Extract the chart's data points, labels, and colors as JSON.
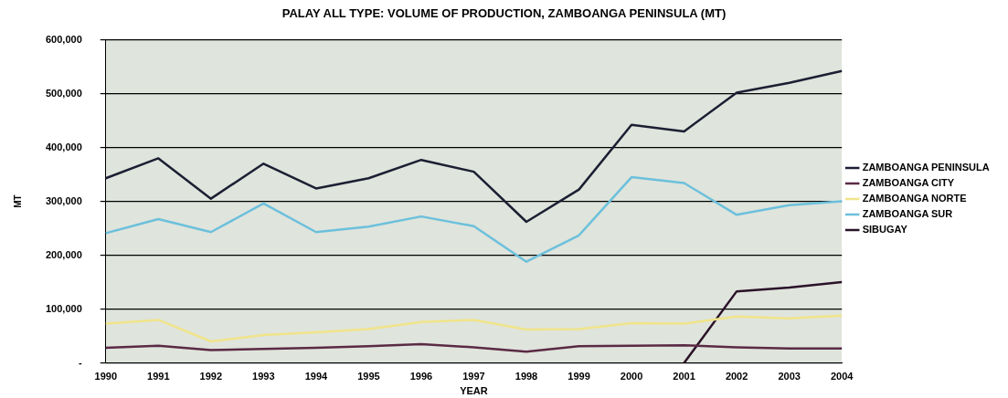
{
  "chart_data": {
    "type": "line",
    "title": "PALAY ALL TYPE: VOLUME OF PRODUCTION, ZAMBOANGA PENINSULA (MT)",
    "xlabel": "YEAR",
    "ylabel": "MT",
    "categories": [
      "1990",
      "1991",
      "1992",
      "1993",
      "1994",
      "1995",
      "1996",
      "1997",
      "1998",
      "1999",
      "2000",
      "2001",
      "2002",
      "2003",
      "2004"
    ],
    "series": [
      {
        "name": "ZAMBOANGA PENINSULA",
        "color": "#1c1f33",
        "values": [
          343000,
          380000,
          305000,
          370000,
          324000,
          343000,
          377000,
          355000,
          262000,
          322000,
          442000,
          430000,
          502000,
          520000,
          542000
        ]
      },
      {
        "name": "ZAMBOANGA CITY",
        "color": "#5a2a45",
        "values": [
          28000,
          32000,
          24000,
          26000,
          28000,
          31000,
          35000,
          29000,
          21000,
          31000,
          32000,
          33000,
          29000,
          27000,
          27000
        ]
      },
      {
        "name": "ZAMBOANGA NORTE",
        "color": "#f0e48a",
        "values": [
          73000,
          80000,
          40000,
          52000,
          57000,
          63000,
          76000,
          80000,
          62000,
          63000,
          74000,
          73000,
          86000,
          83000,
          88000
        ]
      },
      {
        "name": "ZAMBOANGA SUR",
        "color": "#6cc0dc",
        "values": [
          241000,
          267000,
          243000,
          296000,
          243000,
          253000,
          272000,
          254000,
          188000,
          237000,
          345000,
          334000,
          275000,
          293000,
          300000
        ]
      },
      {
        "name": "SIBUGAY",
        "color": "#2a1228",
        "values": [
          null,
          null,
          null,
          null,
          null,
          null,
          null,
          null,
          null,
          null,
          null,
          0,
          133000,
          140000,
          150000
        ]
      }
    ],
    "ylim": [
      0,
      600000
    ],
    "yticks": [
      {
        "value": 0,
        "label": "-"
      },
      {
        "value": 100000,
        "label": "100,000"
      },
      {
        "value": 200000,
        "label": "200,000"
      },
      {
        "value": 300000,
        "label": "300,000"
      },
      {
        "value": 400000,
        "label": "400,000"
      },
      {
        "value": 500000,
        "label": "500,000"
      },
      {
        "value": 600000,
        "label": "600,000"
      }
    ],
    "grid": "y",
    "legend": "right",
    "marker": "none",
    "line_style": "solid"
  }
}
